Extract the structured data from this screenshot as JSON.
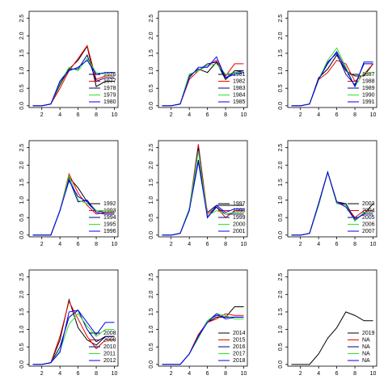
{
  "chart_data": [
    {
      "type": "line",
      "x": [
        1,
        2,
        3,
        4,
        5,
        6,
        7,
        8,
        9,
        10
      ],
      "xlim": [
        0.6,
        10.4
      ],
      "ylim": [
        -0.05,
        2.7
      ],
      "xticks": [
        2,
        4,
        6,
        8,
        10
      ],
      "yticks": [
        {
          "value": 0,
          "label": "0.0"
        },
        {
          "value": 0.5,
          "label": "0.5"
        },
        {
          "value": 1,
          "label": "1.0"
        },
        {
          "value": 1.5,
          "label": "1.5"
        },
        {
          "value": 2,
          "label": "2.0"
        },
        {
          "value": 2.5,
          "label": "2.5"
        }
      ],
      "series": [
        {
          "name": "1976",
          "color": "#000000",
          "values": [
            0,
            0,
            0.05,
            0.6,
            1.05,
            1.3,
            1.7,
            0.55,
            0.7,
            0.7
          ]
        },
        {
          "name": "1977",
          "color": "#ee0000",
          "values": [
            0,
            0,
            0.05,
            0.5,
            1.0,
            1.35,
            1.72,
            0.75,
            0.85,
            0.85
          ]
        },
        {
          "name": "1978",
          "color": "#000080",
          "values": [
            0,
            0,
            0.05,
            0.7,
            1.05,
            1.05,
            1.45,
            0.7,
            0.8,
            0.8
          ]
        },
        {
          "name": "1979",
          "color": "#33dd33",
          "values": [
            0,
            0,
            0.05,
            0.65,
            1.1,
            1.0,
            1.35,
            0.95,
            0.9,
            0.9
          ]
        },
        {
          "name": "1980",
          "color": "#0000ff",
          "values": [
            0,
            0,
            0.05,
            0.7,
            1.0,
            1.1,
            1.3,
            0.9,
            0.95,
            0.95
          ]
        }
      ]
    },
    {
      "type": "line",
      "x": [
        1,
        2,
        3,
        4,
        5,
        6,
        7,
        8,
        9,
        10
      ],
      "xlim": [
        0.6,
        10.4
      ],
      "ylim": [
        -0.05,
        2.7
      ],
      "xticks": [
        2,
        4,
        6,
        8,
        10
      ],
      "yticks": [
        {
          "value": 0,
          "label": "0.0"
        },
        {
          "value": 0.5,
          "label": "0.5"
        },
        {
          "value": 1,
          "label": "1.0"
        },
        {
          "value": 1.5,
          "label": "1.5"
        },
        {
          "value": 2,
          "label": "2.0"
        },
        {
          "value": 2.5,
          "label": "2.5"
        }
      ],
      "series": [
        {
          "name": "1981",
          "color": "#000000",
          "values": [
            0,
            0,
            0.05,
            0.85,
            1.05,
            0.95,
            1.25,
            0.75,
            1.0,
            1.0
          ]
        },
        {
          "name": "1982",
          "color": "#ee0000",
          "values": [
            0,
            0,
            0.05,
            0.75,
            1.0,
            1.15,
            1.3,
            0.85,
            1.2,
            1.2
          ]
        },
        {
          "name": "1983",
          "color": "#000080",
          "values": [
            0,
            0,
            0.05,
            0.9,
            1.0,
            1.2,
            1.25,
            0.8,
            0.95,
            1.0
          ]
        },
        {
          "name": "1984",
          "color": "#33dd33",
          "values": [
            0,
            0,
            0.05,
            0.9,
            1.0,
            1.15,
            1.2,
            0.9,
            0.95,
            0.95
          ]
        },
        {
          "name": "1985",
          "color": "#0000ff",
          "values": [
            0,
            0,
            0.05,
            0.8,
            1.1,
            1.1,
            1.4,
            0.8,
            0.9,
            0.95
          ]
        }
      ]
    },
    {
      "type": "line",
      "x": [
        1,
        2,
        3,
        4,
        5,
        6,
        7,
        8,
        9,
        10
      ],
      "xlim": [
        0.6,
        10.4
      ],
      "ylim": [
        -0.05,
        2.7
      ],
      "xticks": [
        2,
        4,
        6,
        8,
        10
      ],
      "yticks": [
        {
          "value": 0,
          "label": "0.0"
        },
        {
          "value": 0.5,
          "label": "0.5"
        },
        {
          "value": 1,
          "label": "1.0"
        },
        {
          "value": 1.5,
          "label": "1.5"
        },
        {
          "value": 2,
          "label": "2.0"
        },
        {
          "value": 2.5,
          "label": "2.5"
        }
      ],
      "series": [
        {
          "name": "1987",
          "color": "#000000",
          "values": [
            0,
            0,
            0.05,
            0.8,
            1.05,
            1.45,
            1.0,
            0.85,
            0.85,
            1.2
          ]
        },
        {
          "name": "1988",
          "color": "#ee0000",
          "values": [
            0,
            0,
            0.05,
            0.75,
            0.95,
            1.3,
            1.2,
            0.7,
            0.9,
            1.2
          ]
        },
        {
          "name": "1989",
          "color": "#000080",
          "values": [
            0,
            0,
            0.05,
            0.75,
            1.25,
            1.5,
            0.9,
            0.6,
            1.2,
            1.2
          ]
        },
        {
          "name": "1990",
          "color": "#33dd33",
          "values": [
            0,
            0,
            0.05,
            0.75,
            1.3,
            1.65,
            1.1,
            0.55,
            0.95,
            0.95
          ]
        },
        {
          "name": "1991",
          "color": "#0000ff",
          "values": [
            0,
            0,
            0.05,
            0.75,
            1.2,
            1.55,
            1.05,
            0.55,
            1.25,
            1.25
          ]
        }
      ]
    },
    {
      "type": "line",
      "x": [
        1,
        2,
        3,
        4,
        5,
        6,
        7,
        8,
        9,
        10
      ],
      "xlim": [
        0.6,
        10.4
      ],
      "ylim": [
        -0.05,
        2.7
      ],
      "xticks": [
        2,
        4,
        6,
        8,
        10
      ],
      "yticks": [
        {
          "value": 0,
          "label": "0.0"
        },
        {
          "value": 0.5,
          "label": "0.5"
        },
        {
          "value": 1,
          "label": "1.0"
        },
        {
          "value": 1.5,
          "label": "1.5"
        },
        {
          "value": 2,
          "label": "2.0"
        },
        {
          "value": 2.5,
          "label": "2.5"
        }
      ],
      "series": [
        {
          "name": "1992",
          "color": "#000000",
          "values": [
            0,
            0,
            0,
            0.7,
            1.65,
            1.35,
            0.95,
            0.7,
            0.65,
            0.65
          ]
        },
        {
          "name": "1993",
          "color": "#ee0000",
          "values": [
            0,
            0,
            0,
            0.7,
            1.75,
            1.2,
            0.85,
            0.6,
            0.65,
            0.65
          ]
        },
        {
          "name": "1994",
          "color": "#000080",
          "values": [
            0,
            0,
            0,
            0.7,
            1.6,
            0.95,
            1.0,
            0.65,
            0.6,
            0.6
          ]
        },
        {
          "name": "1995",
          "color": "#33dd33",
          "values": [
            0,
            0,
            0,
            0.7,
            1.7,
            1.0,
            0.9,
            0.7,
            0.7,
            0.7
          ]
        },
        {
          "name": "1996",
          "color": "#0000ff",
          "values": [
            0,
            0,
            0,
            0.7,
            1.55,
            1.1,
            0.95,
            0.65,
            0.6,
            0.6
          ]
        }
      ]
    },
    {
      "type": "line",
      "x": [
        1,
        2,
        3,
        4,
        5,
        6,
        7,
        8,
        9,
        10
      ],
      "xlim": [
        0.6,
        10.4
      ],
      "ylim": [
        -0.05,
        2.7
      ],
      "xticks": [
        2,
        4,
        6,
        8,
        10
      ],
      "yticks": [
        {
          "value": 0,
          "label": "0.0"
        },
        {
          "value": 0.5,
          "label": "0.5"
        },
        {
          "value": 1,
          "label": "1.0"
        },
        {
          "value": 1.5,
          "label": "1.5"
        },
        {
          "value": 2,
          "label": "2.0"
        },
        {
          "value": 2.5,
          "label": "2.5"
        }
      ],
      "series": [
        {
          "name": "1997",
          "color": "#000000",
          "values": [
            0,
            0,
            0.05,
            0.75,
            2.15,
            0.65,
            0.85,
            0.85,
            0.85,
            0.85
          ]
        },
        {
          "name": "1998",
          "color": "#ee0000",
          "values": [
            0,
            0,
            0.05,
            0.75,
            2.6,
            0.6,
            0.8,
            0.5,
            0.7,
            0.7
          ]
        },
        {
          "name": "1999",
          "color": "#000080",
          "values": [
            0,
            0,
            0.05,
            0.7,
            2.5,
            0.5,
            0.8,
            0.6,
            0.6,
            0.6
          ]
        },
        {
          "name": "2000",
          "color": "#33dd33",
          "values": [
            0,
            0,
            0.05,
            0.75,
            2.4,
            0.55,
            0.7,
            0.6,
            0.65,
            0.65
          ]
        },
        {
          "name": "2001",
          "color": "#0000ff",
          "values": [
            0,
            0,
            0.05,
            0.7,
            2.1,
            0.5,
            0.85,
            0.65,
            0.75,
            0.75
          ]
        }
      ]
    },
    {
      "type": "line",
      "x": [
        1,
        2,
        3,
        4,
        5,
        6,
        7,
        8,
        9,
        10
      ],
      "xlim": [
        0.6,
        10.4
      ],
      "ylim": [
        -0.05,
        2.7
      ],
      "xticks": [
        2,
        4,
        6,
        8,
        10
      ],
      "yticks": [
        {
          "value": 0,
          "label": "0.0"
        },
        {
          "value": 0.5,
          "label": "0.5"
        },
        {
          "value": 1,
          "label": "1.0"
        },
        {
          "value": 1.5,
          "label": "1.5"
        },
        {
          "value": 2,
          "label": "2.0"
        },
        {
          "value": 2.5,
          "label": "2.5"
        }
      ],
      "series": [
        {
          "name": "2003",
          "color": "#000000",
          "values": [
            0,
            0,
            0.05,
            0.9,
            1.8,
            0.95,
            0.9,
            0.45,
            0.6,
            0.9
          ]
        },
        {
          "name": "2004",
          "color": "#ee0000",
          "values": [
            0,
            0,
            0.05,
            0.85,
            1.8,
            0.95,
            0.85,
            0.5,
            0.7,
            0.7
          ]
        },
        {
          "name": "2005",
          "color": "#000080",
          "values": [
            0,
            0,
            0.05,
            0.9,
            1.8,
            0.9,
            0.9,
            0.4,
            0.65,
            0.65
          ]
        },
        {
          "name": "2006",
          "color": "#33dd33",
          "values": [
            0,
            0,
            0.05,
            0.85,
            1.8,
            0.9,
            0.85,
            0.4,
            0.65,
            0.65
          ]
        },
        {
          "name": "2007",
          "color": "#0000ff",
          "values": [
            0,
            0,
            0.05,
            0.9,
            1.8,
            0.95,
            0.8,
            0.45,
            0.6,
            0.6
          ]
        }
      ]
    },
    {
      "type": "line",
      "x": [
        1,
        2,
        3,
        4,
        5,
        6,
        7,
        8,
        9,
        10
      ],
      "xlim": [
        0.6,
        10.4
      ],
      "ylim": [
        -0.05,
        2.7
      ],
      "xticks": [
        2,
        4,
        6,
        8,
        10
      ],
      "yticks": [
        {
          "value": 0,
          "label": "0.0"
        },
        {
          "value": 0.5,
          "label": "0.5"
        },
        {
          "value": 1,
          "label": "1.0"
        },
        {
          "value": 1.5,
          "label": "1.5"
        },
        {
          "value": 2,
          "label": "2.0"
        },
        {
          "value": 2.5,
          "label": "2.5"
        }
      ],
      "series": [
        {
          "name": "2008",
          "color": "#000000",
          "values": [
            0,
            0,
            0.05,
            0.7,
            1.85,
            1.05,
            0.7,
            0.55,
            0.8,
            0.8
          ]
        },
        {
          "name": "2009",
          "color": "#ee0000",
          "values": [
            0,
            0,
            0.05,
            0.8,
            1.8,
            1.3,
            0.8,
            0.45,
            0.7,
            0.7
          ]
        },
        {
          "name": "2010",
          "color": "#000080",
          "values": [
            0,
            0,
            0.05,
            0.5,
            1.35,
            1.55,
            1.0,
            0.65,
            0.8,
            0.8
          ]
        },
        {
          "name": "2011",
          "color": "#33dd33",
          "values": [
            0,
            0,
            0.05,
            0.4,
            1.15,
            1.45,
            1.1,
            0.8,
            1.0,
            1.0
          ]
        },
        {
          "name": "2012",
          "color": "#0000ff",
          "values": [
            0,
            0,
            0.05,
            0.35,
            1.5,
            1.55,
            1.2,
            0.85,
            1.2,
            1.2
          ]
        }
      ]
    },
    {
      "type": "line",
      "x": [
        1,
        2,
        3,
        4,
        5,
        6,
        7,
        8,
        9,
        10
      ],
      "xlim": [
        0.6,
        10.4
      ],
      "ylim": [
        -0.05,
        2.7
      ],
      "xticks": [
        2,
        4,
        6,
        8,
        10
      ],
      "yticks": [
        {
          "value": 0,
          "label": "0.0"
        },
        {
          "value": 0.5,
          "label": "0.5"
        },
        {
          "value": 1,
          "label": "1.0"
        },
        {
          "value": 1.5,
          "label": "1.5"
        },
        {
          "value": 2,
          "label": "2.0"
        },
        {
          "value": 2.5,
          "label": "2.5"
        }
      ],
      "series": [
        {
          "name": "2014",
          "color": "#000000",
          "values": [
            0,
            0,
            0,
            0.3,
            0.85,
            1.2,
            1.35,
            1.35,
            1.65,
            1.65
          ]
        },
        {
          "name": "2015",
          "color": "#ee0000",
          "values": [
            0,
            0,
            0,
            0.3,
            0.85,
            1.2,
            1.3,
            1.45,
            1.4,
            1.4
          ]
        },
        {
          "name": "2016",
          "color": "#000080",
          "values": [
            0,
            0,
            0,
            0.3,
            0.8,
            1.25,
            1.4,
            1.35,
            1.35,
            1.35
          ]
        },
        {
          "name": "2017",
          "color": "#33dd33",
          "values": [
            0,
            0,
            0,
            0.3,
            0.75,
            1.25,
            1.45,
            1.4,
            1.3,
            1.3
          ]
        },
        {
          "name": "2018",
          "color": "#0000ff",
          "values": [
            0,
            0,
            0,
            0.3,
            0.8,
            1.2,
            1.45,
            1.3,
            1.35,
            1.35
          ]
        }
      ]
    },
    {
      "type": "line",
      "x": [
        1,
        2,
        3,
        4,
        5,
        6,
        7,
        8,
        9,
        10
      ],
      "xlim": [
        0.6,
        10.4
      ],
      "ylim": [
        -0.05,
        2.7
      ],
      "xticks": [
        2,
        4,
        6,
        8,
        10
      ],
      "yticks": [
        {
          "value": 0,
          "label": "0.0"
        },
        {
          "value": 0.5,
          "label": "0.5"
        },
        {
          "value": 1,
          "label": "1.0"
        },
        {
          "value": 1.5,
          "label": "1.5"
        },
        {
          "value": 2,
          "label": "2.0"
        },
        {
          "value": 2.5,
          "label": "2.5"
        }
      ],
      "series": [
        {
          "name": "2019",
          "color": "#000000",
          "values": [
            0,
            0,
            0,
            0.3,
            0.75,
            1.05,
            1.5,
            1.4,
            1.25,
            1.25
          ]
        },
        {
          "name": "NA",
          "color": "#ee0000",
          "values": [
            null,
            null,
            null,
            null,
            null,
            null,
            null,
            null,
            null,
            null
          ]
        },
        {
          "name": "NA",
          "color": "#000080",
          "values": [
            null,
            null,
            null,
            null,
            null,
            null,
            null,
            null,
            null,
            null
          ]
        },
        {
          "name": "NA",
          "color": "#33dd33",
          "values": [
            null,
            null,
            null,
            null,
            null,
            null,
            null,
            null,
            null,
            null
          ]
        },
        {
          "name": "NA",
          "color": "#0000ff",
          "values": [
            null,
            null,
            null,
            null,
            null,
            null,
            null,
            null,
            null,
            null
          ]
        }
      ]
    }
  ]
}
